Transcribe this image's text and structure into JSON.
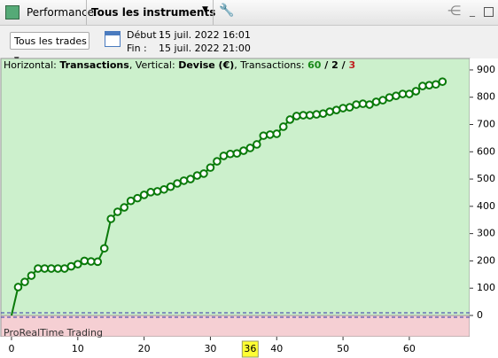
{
  "toolbar": {
    "tab": "Performance",
    "instrument": "Tous les instruments"
  },
  "filter": {
    "trades": "Tous les trades",
    "start_label": "Début :",
    "start": "15 juil. 2022 16:01",
    "end_label": "Fin :",
    "end": "15 juil. 2022 21:00"
  },
  "chart_data": {
    "type": "line",
    "color": "#0a7a0a",
    "loss_color": "#c0392b",
    "info": [
      "Horizontal: ",
      "Transactions",
      ", Vertical: ",
      "Devise (€)",
      ", Transactions: ",
      "60",
      " / ",
      "2",
      " / ",
      "3"
    ],
    "watermark": "ProRealTime Trading",
    "x": [
      0,
      1,
      2,
      3,
      4,
      5,
      6,
      7,
      8,
      9,
      10,
      11,
      12,
      13,
      14,
      15,
      16,
      17,
      18,
      19,
      20,
      21,
      22,
      23,
      24,
      25,
      26,
      27,
      28,
      29,
      30,
      31,
      32,
      33,
      34,
      35,
      36,
      37,
      38,
      39,
      40,
      41,
      42,
      43,
      44,
      45,
      46,
      47,
      48,
      49,
      50,
      51,
      52,
      53,
      54,
      55,
      56,
      57,
      58,
      59,
      60,
      61,
      62,
      63,
      64,
      65
    ],
    "values": [
      0,
      104,
      123,
      146,
      172,
      172,
      172,
      172,
      172,
      180,
      188,
      200,
      198,
      197,
      246,
      354,
      380,
      396,
      420,
      430,
      442,
      452,
      455,
      462,
      472,
      484,
      494,
      500,
      513,
      520,
      542,
      565,
      585,
      592,
      594,
      604,
      614,
      627,
      659,
      663,
      666,
      692,
      718,
      731,
      734,
      734,
      737,
      740,
      747,
      753,
      760,
      763,
      773,
      776,
      773,
      783,
      789,
      799,
      805,
      812,
      812,
      822,
      841,
      844,
      847,
      857
    ],
    "xlim": [
      -1.6,
      69.1
    ],
    "ylim": [
      -78,
      942
    ],
    "xticks": [
      0,
      10,
      20,
      30,
      40,
      50,
      60
    ],
    "yticks": [
      0,
      100,
      200,
      300,
      400,
      500,
      600,
      700,
      800,
      900
    ],
    "cursor_x": 36
  }
}
